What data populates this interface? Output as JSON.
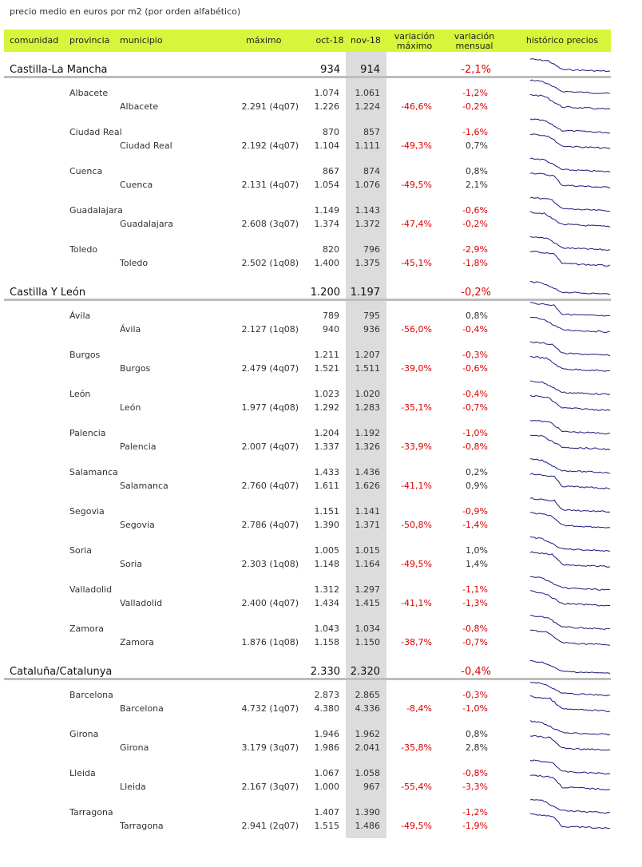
{
  "title": "precio medio en euros por m2 (por orden alfabético)",
  "header": [
    "comunidad",
    "provincia",
    "municipio",
    "máximo",
    "oct-18",
    "nov-18",
    "variación máximo",
    "variación mensual",
    "histórico precios"
  ],
  "regions": [
    {
      "name": "Castilla-La Mancha",
      "oct": "934",
      "nov": "914",
      "mensual": "-2,1%",
      "provinces": [
        {
          "name": "Albacete",
          "oct": "1.074",
          "nov": "1.061",
          "mensual": "-1,2%",
          "municipality": {
            "name": "Albacete",
            "max": "2.291 (4q07)",
            "oct": "1.226",
            "nov": "1.224",
            "var_max": "-46,6%",
            "mensual": "-0,2%"
          }
        },
        {
          "name": "Ciudad Real",
          "oct": "870",
          "nov": "857",
          "mensual": "-1,6%",
          "municipality": {
            "name": "Ciudad Real",
            "max": "2.192 (4q07)",
            "oct": "1.104",
            "nov": "1.111",
            "var_max": "-49,3%",
            "mensual": "0,7%"
          }
        },
        {
          "name": "Cuenca",
          "oct": "867",
          "nov": "874",
          "mensual": "0,8%",
          "municipality": {
            "name": "Cuenca",
            "max": "2.131 (4q07)",
            "oct": "1.054",
            "nov": "1.076",
            "var_max": "-49,5%",
            "mensual": "2,1%"
          }
        },
        {
          "name": "Guadalajara",
          "oct": "1.149",
          "nov": "1.143",
          "mensual": "-0,6%",
          "municipality": {
            "name": "Guadalajara",
            "max": "2.608 (3q07)",
            "oct": "1.374",
            "nov": "1.372",
            "var_max": "-47,4%",
            "mensual": "-0,2%"
          }
        },
        {
          "name": "Toledo",
          "oct": "820",
          "nov": "796",
          "mensual": "-2,9%",
          "municipality": {
            "name": "Toledo",
            "max": "2.502 (1q08)",
            "oct": "1.400",
            "nov": "1.375",
            "var_max": "-45,1%",
            "mensual": "-1,8%"
          }
        }
      ]
    },
    {
      "name": "Castilla Y León",
      "oct": "1.200",
      "nov": "1.197",
      "mensual": "-0,2%",
      "provinces": [
        {
          "name": "Ávila",
          "oct": "789",
          "nov": "795",
          "mensual": "0,8%",
          "municipality": {
            "name": "Ávila",
            "max": "2.127 (1q08)",
            "oct": "940",
            "nov": "936",
            "var_max": "-56,0%",
            "mensual": "-0,4%"
          }
        },
        {
          "name": "Burgos",
          "oct": "1.211",
          "nov": "1.207",
          "mensual": "-0,3%",
          "municipality": {
            "name": "Burgos",
            "max": "2.479 (4q07)",
            "oct": "1.521",
            "nov": "1.511",
            "var_max": "-39,0%",
            "mensual": "-0,6%"
          }
        },
        {
          "name": "León",
          "oct": "1.023",
          "nov": "1.020",
          "mensual": "-0,4%",
          "municipality": {
            "name": "León",
            "max": "1.977 (4q08)",
            "oct": "1.292",
            "nov": "1.283",
            "var_max": "-35,1%",
            "mensual": "-0,7%"
          }
        },
        {
          "name": "Palencia",
          "oct": "1.204",
          "nov": "1.192",
          "mensual": "-1,0%",
          "municipality": {
            "name": "Palencia",
            "max": "2.007 (4q07)",
            "oct": "1.337",
            "nov": "1.326",
            "var_max": "-33,9%",
            "mensual": "-0,8%"
          }
        },
        {
          "name": "Salamanca",
          "oct": "1.433",
          "nov": "1.436",
          "mensual": "0,2%",
          "municipality": {
            "name": "Salamanca",
            "max": "2.760 (4q07)",
            "oct": "1.611",
            "nov": "1.626",
            "var_max": "-41,1%",
            "mensual": "0,9%"
          }
        },
        {
          "name": "Segovia",
          "oct": "1.151",
          "nov": "1.141",
          "mensual": "-0,9%",
          "municipality": {
            "name": "Segovia",
            "max": "2.786 (4q07)",
            "oct": "1.390",
            "nov": "1.371",
            "var_max": "-50,8%",
            "mensual": "-1,4%"
          }
        },
        {
          "name": "Soria",
          "oct": "1.005",
          "nov": "1.015",
          "mensual": "1,0%",
          "municipality": {
            "name": "Soria",
            "max": "2.303 (1q08)",
            "oct": "1.148",
            "nov": "1.164",
            "var_max": "-49,5%",
            "mensual": "1,4%"
          }
        },
        {
          "name": "Valladolid",
          "oct": "1.312",
          "nov": "1.297",
          "mensual": "-1,1%",
          "municipality": {
            "name": "Valladolid",
            "max": "2.400 (4q07)",
            "oct": "1.434",
            "nov": "1.415",
            "var_max": "-41,1%",
            "mensual": "-1,3%"
          }
        },
        {
          "name": "Zamora",
          "oct": "1.043",
          "nov": "1.034",
          "mensual": "-0,8%",
          "municipality": {
            "name": "Zamora",
            "max": "1.876 (1q08)",
            "oct": "1.158",
            "nov": "1.150",
            "var_max": "-38,7%",
            "mensual": "-0,7%"
          }
        }
      ]
    },
    {
      "name": "Cataluña/Catalunya",
      "oct": "2.330",
      "nov": "2.320",
      "mensual": "-0,4%",
      "provinces": [
        {
          "name": "Barcelona",
          "oct": "2.873",
          "nov": "2.865",
          "mensual": "-0,3%",
          "municipality": {
            "name": "Barcelona",
            "max": "4.732 (1q07)",
            "oct": "4.380",
            "nov": "4.336",
            "var_max": "-8,4%",
            "mensual": "-1,0%"
          }
        },
        {
          "name": "Girona",
          "oct": "1.946",
          "nov": "1.962",
          "mensual": "0,8%",
          "municipality": {
            "name": "Girona",
            "max": "3.179 (3q07)",
            "oct": "1.986",
            "nov": "2.041",
            "var_max": "-35,8%",
            "mensual": "2,8%"
          }
        },
        {
          "name": "Lleida",
          "oct": "1.067",
          "nov": "1.058",
          "mensual": "-0,8%",
          "municipality": {
            "name": "Lleida",
            "max": "2.167 (3q07)",
            "oct": "1.000",
            "nov": "967",
            "var_max": "-55,4%",
            "mensual": "-3,3%"
          }
        },
        {
          "name": "Tarragona",
          "oct": "1.407",
          "nov": "1.390",
          "mensual": "-1,2%",
          "municipality": {
            "name": "Tarragona",
            "max": "2.941 (2q07)",
            "oct": "1.515",
            "nov": "1.486",
            "var_max": "-49,5%",
            "mensual": "-1,9%"
          }
        }
      ]
    }
  ]
}
